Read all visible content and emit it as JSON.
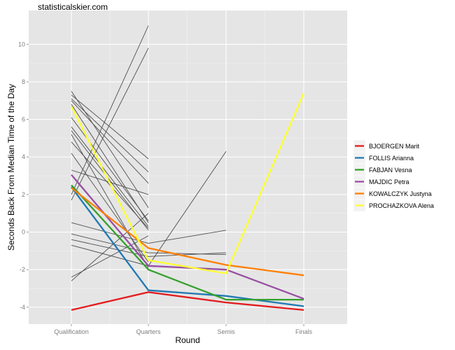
{
  "watermark": "statisticalskier.com",
  "chart_data": {
    "type": "line",
    "title": "",
    "xlabel": "Round",
    "ylabel": "Seconds Back From Median Time of the Day",
    "categories": [
      "Qualification",
      "Quarters",
      "Semis",
      "Finals"
    ],
    "ylim": [
      -4.9,
      11.8
    ],
    "yticks": [
      -4,
      -2,
      0,
      2,
      4,
      6,
      8,
      10
    ],
    "grid": true,
    "legend_position": "right",
    "background_lines": [
      {
        "values": [
          7.5,
          1.3,
          null,
          null
        ]
      },
      {
        "values": [
          7.3,
          3.9,
          null,
          null
        ]
      },
      {
        "values": [
          7.1,
          3.2,
          null,
          null
        ]
      },
      {
        "values": [
          7.0,
          2.6,
          null,
          null
        ]
      },
      {
        "values": [
          6.8,
          0.5,
          null,
          null
        ]
      },
      {
        "values": [
          6.1,
          0.6,
          null,
          null
        ]
      },
      {
        "values": [
          5.6,
          0.3,
          null,
          null
        ]
      },
      {
        "values": [
          5.4,
          0.1,
          null,
          null
        ]
      },
      {
        "values": [
          5.2,
          -1.9,
          null,
          null
        ]
      },
      {
        "values": [
          4.8,
          0.2,
          null,
          null
        ]
      },
      {
        "values": [
          4.2,
          -1.6,
          null,
          null
        ]
      },
      {
        "values": [
          3.3,
          2.0,
          null,
          null
        ]
      },
      {
        "values": [
          2.0,
          11.0,
          null,
          null
        ]
      },
      {
        "values": [
          1.7,
          9.8,
          null,
          null
        ]
      },
      {
        "values": [
          0.5,
          -0.6,
          0.1,
          null
        ]
      },
      {
        "values": [
          -0.1,
          -1.1,
          -1.2,
          null
        ]
      },
      {
        "values": [
          -0.4,
          -1.3,
          -1.1,
          null
        ]
      },
      {
        "values": [
          -0.7,
          -1.8,
          4.3,
          null
        ]
      },
      {
        "values": [
          -2.4,
          -0.2,
          null,
          null
        ]
      },
      {
        "values": [
          -2.6,
          1.0,
          null,
          null
        ]
      }
    ],
    "series": [
      {
        "name": "BJOERGEN Marit",
        "color": "#e41a1c",
        "values": [
          -4.15,
          -3.2,
          -3.75,
          -4.15
        ]
      },
      {
        "name": "FOLLIS Arianna",
        "color": "#1f78b4",
        "values": [
          2.4,
          -3.1,
          -3.4,
          -3.95
        ]
      },
      {
        "name": "FABJAN Vesna",
        "color": "#33a02c",
        "values": [
          2.5,
          -2.0,
          -3.6,
          -3.6
        ]
      },
      {
        "name": "MAJDIC Petra",
        "color": "#984ea3",
        "values": [
          3.05,
          -1.8,
          -2.0,
          -3.55
        ]
      },
      {
        "name": "KOWALCZYK Justyna",
        "color": "#ff7f00",
        "values": [
          2.35,
          -0.85,
          -1.75,
          -2.3
        ]
      },
      {
        "name": "PROCHAZKOVA Alena",
        "color": "#ffff33",
        "values": [
          6.7,
          -1.5,
          -2.2,
          7.4
        ]
      }
    ]
  }
}
